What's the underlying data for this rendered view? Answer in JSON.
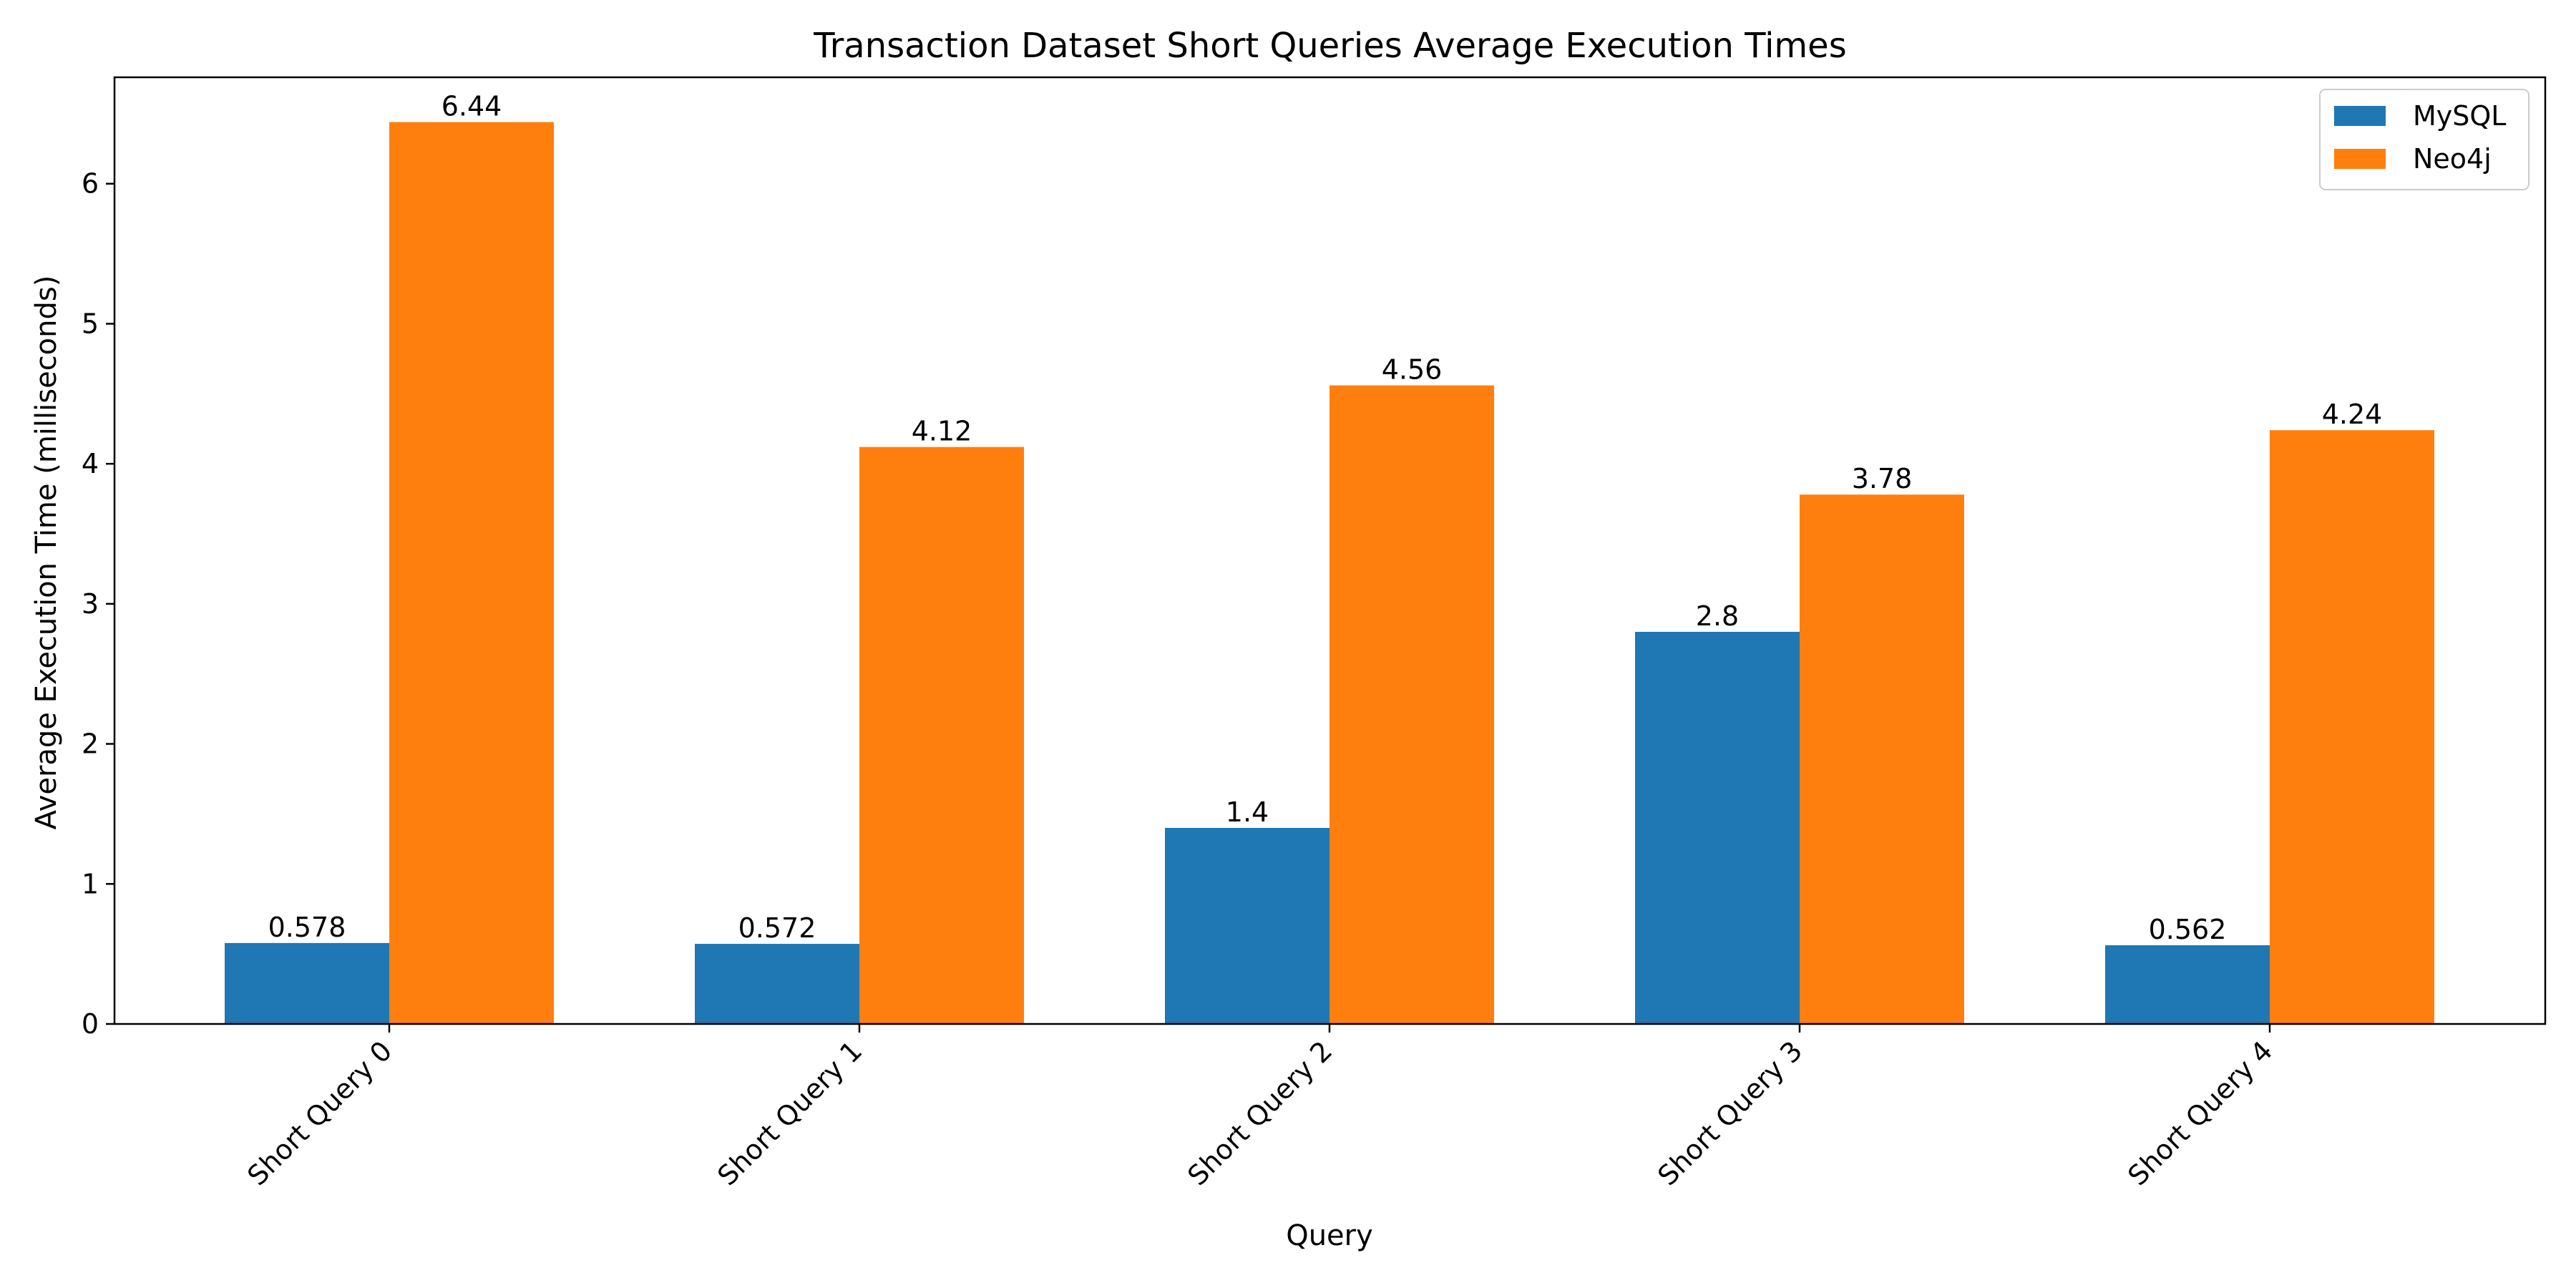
{
  "chart_data": {
    "type": "bar",
    "title": "Transaction Dataset Short Queries Average Execution Times",
    "xlabel": "Query",
    "ylabel": "Average Execution Time (milliseconds)",
    "categories": [
      "Short Query 0",
      "Short Query 1",
      "Short Query 2",
      "Short Query 3",
      "Short Query 4"
    ],
    "series": [
      {
        "name": "MySQL",
        "color": "#1f77b4",
        "values": [
          0.578,
          0.572,
          1.4,
          2.8,
          0.562
        ],
        "labels": [
          "0.578",
          "0.572",
          "1.4",
          "2.8",
          "0.562"
        ]
      },
      {
        "name": "Neo4j",
        "color": "#ff7f0e",
        "values": [
          6.44,
          4.12,
          4.56,
          3.78,
          4.24
        ],
        "labels": [
          "6.44",
          "4.12",
          "4.56",
          "3.78",
          "4.24"
        ]
      }
    ],
    "ylim": [
      0,
      6.76
    ],
    "yticks": [
      0,
      1,
      2,
      3,
      4,
      5,
      6
    ],
    "grid": false,
    "legend_position": "top-right",
    "xtick_rotation": -45
  }
}
